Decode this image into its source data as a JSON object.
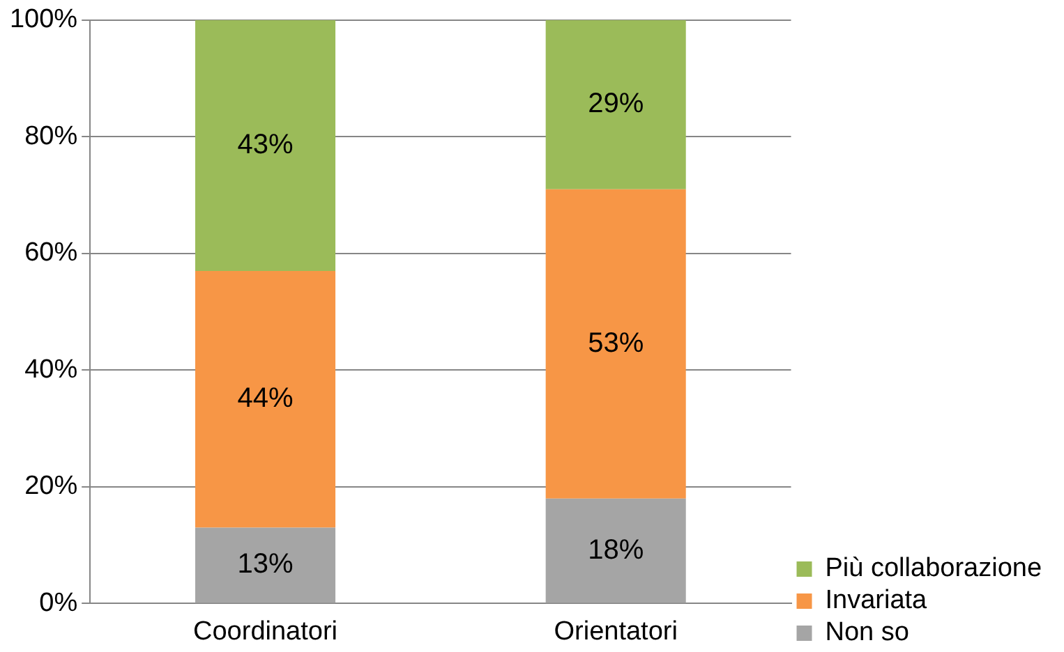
{
  "chart_data": {
    "type": "bar",
    "stacked": true,
    "categories": [
      "Coordinatori",
      "Orientatori"
    ],
    "series": [
      {
        "name": "Non so",
        "color": "#a5a5a5",
        "values": [
          13,
          18
        ],
        "value_labels": [
          "13%",
          "18%"
        ]
      },
      {
        "name": "Invariata",
        "color": "#f79646",
        "values": [
          44,
          53
        ],
        "value_labels": [
          "44%",
          "53%"
        ]
      },
      {
        "name": "Più collaborazione",
        "color": "#9bbb59",
        "values": [
          43,
          29
        ],
        "value_labels": [
          "43%",
          "29%"
        ]
      }
    ],
    "ylim": [
      0,
      100
    ],
    "yticks": [
      {
        "value": 0,
        "label": "0%"
      },
      {
        "value": 20,
        "label": "20%"
      },
      {
        "value": 40,
        "label": "40%"
      },
      {
        "value": 60,
        "label": "60%"
      },
      {
        "value": 80,
        "label": "80%"
      },
      {
        "value": 100,
        "label": "100%"
      }
    ],
    "grid": "y",
    "legend": "bottom right"
  }
}
